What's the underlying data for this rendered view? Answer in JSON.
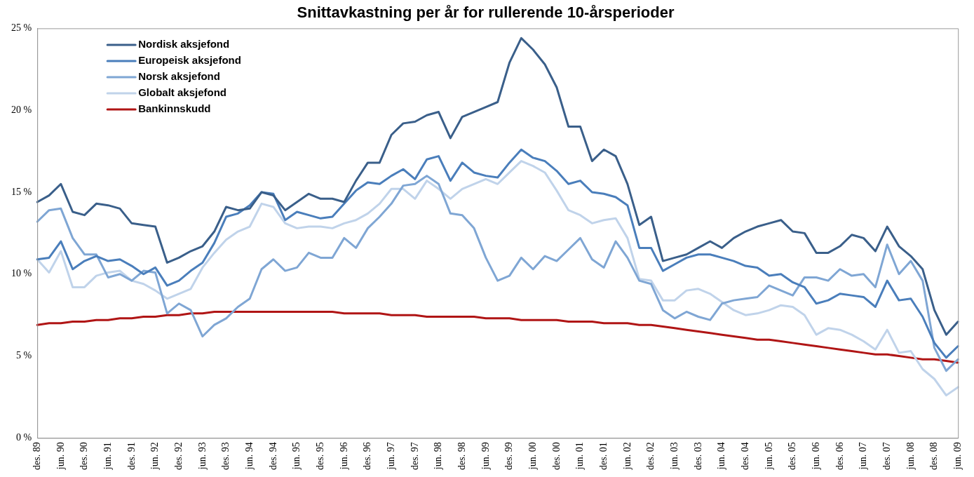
{
  "chart_data": {
    "type": "line",
    "title": "Snittavkastning per år for rullerende 10-årsperioder",
    "categories": [
      "des. 89",
      null,
      "jun. 90",
      null,
      "des. 90",
      null,
      "jun. 91",
      null,
      "des. 91",
      null,
      "jun. 92",
      null,
      "des. 92",
      null,
      "jun. 93",
      null,
      "des. 93",
      null,
      "jun. 94",
      null,
      "des. 94",
      null,
      "jun. 95",
      null,
      "des. 95",
      null,
      "jun. 96",
      null,
      "des. 96",
      null,
      "jun. 97",
      null,
      "des. 97",
      null,
      "jun. 98",
      null,
      "des. 98",
      null,
      "jun. 99",
      null,
      "des. 99",
      null,
      "jun. 00",
      null,
      "des. 00",
      null,
      "jun. 01",
      null,
      "des. 01",
      null,
      "jun. 02",
      null,
      "des. 02",
      null,
      "jun. 03",
      null,
      "des. 03",
      null,
      "jun. 04",
      null,
      "des. 04",
      null,
      "jun. 05",
      null,
      "des. 05",
      null,
      "jun. 06",
      null,
      "des. 06",
      null,
      "jun. 07",
      null,
      "des. 07",
      null,
      "jun. 08",
      null,
      "des. 08",
      null,
      "jun. 09"
    ],
    "series": [
      {
        "name": "Nordisk aksjefond",
        "color": "#3a5f8a",
        "values": [
          14.4,
          14.8,
          15.5,
          13.8,
          13.6,
          14.3,
          14.2,
          14.0,
          13.1,
          13.0,
          12.9,
          10.7,
          11.0,
          11.4,
          11.7,
          12.6,
          14.1,
          13.9,
          14.0,
          15.0,
          14.8,
          13.9,
          14.4,
          14.9,
          14.6,
          14.6,
          14.4,
          15.7,
          16.8,
          16.8,
          18.5,
          19.2,
          19.3,
          19.7,
          19.9,
          18.3,
          19.6,
          19.9,
          20.2,
          20.5,
          22.9,
          24.4,
          23.7,
          22.8,
          21.4,
          19.0,
          19.0,
          16.9,
          17.6,
          17.2,
          15.5,
          13.0,
          13.5,
          10.8,
          11.0,
          11.2,
          11.6,
          12.0,
          11.6,
          12.2,
          12.6,
          12.9,
          13.1,
          13.3,
          12.6,
          12.5,
          11.3,
          11.3,
          11.7,
          12.4,
          12.2,
          11.4,
          12.9,
          11.7,
          11.1,
          10.3,
          7.8,
          6.3,
          7.1
        ]
      },
      {
        "name": "Europeisk aksjefond",
        "color": "#4a7ebb",
        "values": [
          10.9,
          11.0,
          12.0,
          10.3,
          10.8,
          11.1,
          10.8,
          10.9,
          10.5,
          10.0,
          10.4,
          9.3,
          9.6,
          10.2,
          10.7,
          11.9,
          13.5,
          13.7,
          14.2,
          15.0,
          14.9,
          13.3,
          13.8,
          13.6,
          13.4,
          13.5,
          14.3,
          15.1,
          15.6,
          15.5,
          16.0,
          16.4,
          15.8,
          17.0,
          17.2,
          15.7,
          16.8,
          16.2,
          16.0,
          15.9,
          16.8,
          17.6,
          17.1,
          16.9,
          16.3,
          15.5,
          15.7,
          15.0,
          14.9,
          14.7,
          14.2,
          11.6,
          11.6,
          10.2,
          10.6,
          11.0,
          11.2,
          11.2,
          11.0,
          10.8,
          10.5,
          10.4,
          9.9,
          10.0,
          9.5,
          9.2,
          8.2,
          8.4,
          8.8,
          8.7,
          8.6,
          8.0,
          9.6,
          8.4,
          8.5,
          7.4,
          5.8,
          4.9,
          5.6
        ]
      },
      {
        "name": "Norsk aksjefond",
        "color": "#7fa6d4",
        "values": [
          13.2,
          13.9,
          14.0,
          12.2,
          11.2,
          11.2,
          9.8,
          10.0,
          9.6,
          10.2,
          10.1,
          7.6,
          8.2,
          7.8,
          6.2,
          6.9,
          7.3,
          8.0,
          8.5,
          10.3,
          10.9,
          10.2,
          10.4,
          11.3,
          11.0,
          11.0,
          12.2,
          11.6,
          12.8,
          13.5,
          14.3,
          15.4,
          15.5,
          16.0,
          15.5,
          13.7,
          13.6,
          12.8,
          11.0,
          9.6,
          9.9,
          11.0,
          10.3,
          11.1,
          10.8,
          11.5,
          12.2,
          10.9,
          10.4,
          12.0,
          11.0,
          9.6,
          9.4,
          7.8,
          7.3,
          7.7,
          7.4,
          7.2,
          8.2,
          8.4,
          8.5,
          8.6,
          9.3,
          9.0,
          8.7,
          9.8,
          9.8,
          9.6,
          10.3,
          9.9,
          10.0,
          9.2,
          11.8,
          10.0,
          10.8,
          9.6,
          5.5,
          4.1,
          4.8
        ]
      },
      {
        "name": "Globalt aksjefond",
        "color": "#c0d3ea",
        "values": [
          10.9,
          10.1,
          11.4,
          9.2,
          9.2,
          9.9,
          10.1,
          10.2,
          9.6,
          9.4,
          9.0,
          8.5,
          8.8,
          9.1,
          10.4,
          11.3,
          12.1,
          12.6,
          12.9,
          14.3,
          14.1,
          13.1,
          12.8,
          12.9,
          12.9,
          12.8,
          13.1,
          13.3,
          13.7,
          14.3,
          15.2,
          15.2,
          14.6,
          15.7,
          15.2,
          14.6,
          15.2,
          15.5,
          15.8,
          15.5,
          16.2,
          16.9,
          16.6,
          16.2,
          15.1,
          13.9,
          13.6,
          13.1,
          13.3,
          13.4,
          12.2,
          9.7,
          9.6,
          8.4,
          8.4,
          9.0,
          9.1,
          8.8,
          8.3,
          7.8,
          7.5,
          7.6,
          7.8,
          8.1,
          8.0,
          7.5,
          6.3,
          6.7,
          6.6,
          6.3,
          5.9,
          5.4,
          6.6,
          5.2,
          5.3,
          4.2,
          3.6,
          2.6,
          3.1
        ]
      },
      {
        "name": "Bankinnskudd",
        "color": "#b01515",
        "values": [
          6.9,
          7.0,
          7.0,
          7.1,
          7.1,
          7.2,
          7.2,
          7.3,
          7.3,
          7.4,
          7.4,
          7.5,
          7.5,
          7.6,
          7.6,
          7.7,
          7.7,
          7.7,
          7.7,
          7.7,
          7.7,
          7.7,
          7.7,
          7.7,
          7.7,
          7.7,
          7.6,
          7.6,
          7.6,
          7.6,
          7.5,
          7.5,
          7.5,
          7.4,
          7.4,
          7.4,
          7.4,
          7.4,
          7.3,
          7.3,
          7.3,
          7.2,
          7.2,
          7.2,
          7.2,
          7.1,
          7.1,
          7.1,
          7.0,
          7.0,
          7.0,
          6.9,
          6.9,
          6.8,
          6.7,
          6.6,
          6.5,
          6.4,
          6.3,
          6.2,
          6.1,
          6.0,
          6.0,
          5.9,
          5.8,
          5.7,
          5.6,
          5.5,
          5.4,
          5.3,
          5.2,
          5.1,
          5.1,
          5.0,
          4.9,
          4.8,
          4.8,
          4.7,
          4.6
        ]
      }
    ],
    "ylim": [
      0,
      25
    ],
    "yticks": [
      {
        "value": 0,
        "label": "0 %"
      },
      {
        "value": 5,
        "label": "5 %"
      },
      {
        "value": 10,
        "label": "10 %"
      },
      {
        "value": 15,
        "label": "15 %"
      },
      {
        "value": 20,
        "label": "20 %"
      },
      {
        "value": 25,
        "label": "25 %"
      }
    ],
    "legend": "top left",
    "marker": "none",
    "line_style": "solid"
  }
}
